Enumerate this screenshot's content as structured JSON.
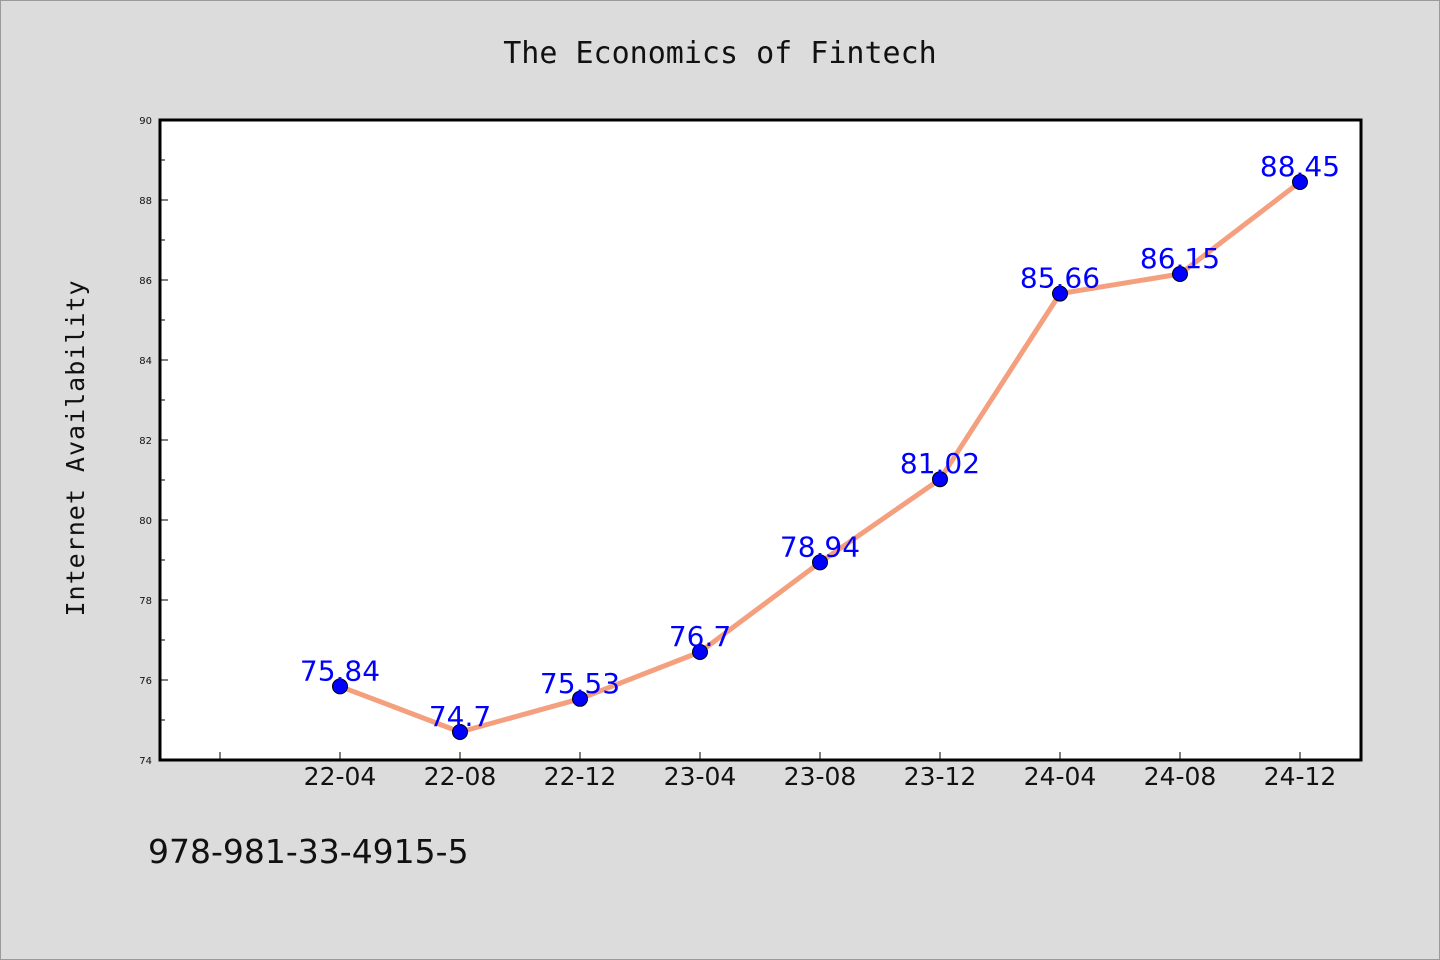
{
  "isbn": "978-981-33-4915-5",
  "chart_data": {
    "type": "line",
    "title": "The Economics of Fintech",
    "xlabel": "",
    "ylabel": "Internet Availability",
    "categories": [
      "22-04",
      "22-08",
      "22-12",
      "23-04",
      "23-08",
      "23-12",
      "24-04",
      "24-08",
      "24-12"
    ],
    "series": [
      {
        "values": [
          75.84,
          74.7,
          75.53,
          76.7,
          78.94,
          81.02,
          85.66,
          86.15,
          88.45
        ],
        "labels": [
          "75.84",
          "74.7",
          "75.53",
          "76.7",
          "78.94",
          "81.02",
          "85.66",
          "86.15",
          "88.45"
        ]
      }
    ],
    "ylim": [
      74,
      90
    ],
    "yticks": [
      74,
      76,
      78,
      80,
      82,
      84,
      86,
      88,
      90
    ],
    "line_color": "#f4a07f",
    "marker_color": "#0000ff",
    "label_color": "#0000ff",
    "grid": false,
    "legend": "none"
  }
}
